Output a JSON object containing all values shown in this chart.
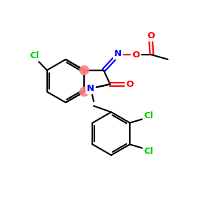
{
  "bg_color": "#ffffff",
  "bond_color": "#000000",
  "N_color": "#0000ff",
  "O_color": "#ff0000",
  "Cl_color": "#00cc00",
  "highlight_color": "#ff8080",
  "bond_width": 1.6,
  "figsize": [
    3.0,
    3.0
  ],
  "dpi": 100,
  "xlim": [
    0,
    10
  ],
  "ylim": [
    0,
    10
  ]
}
